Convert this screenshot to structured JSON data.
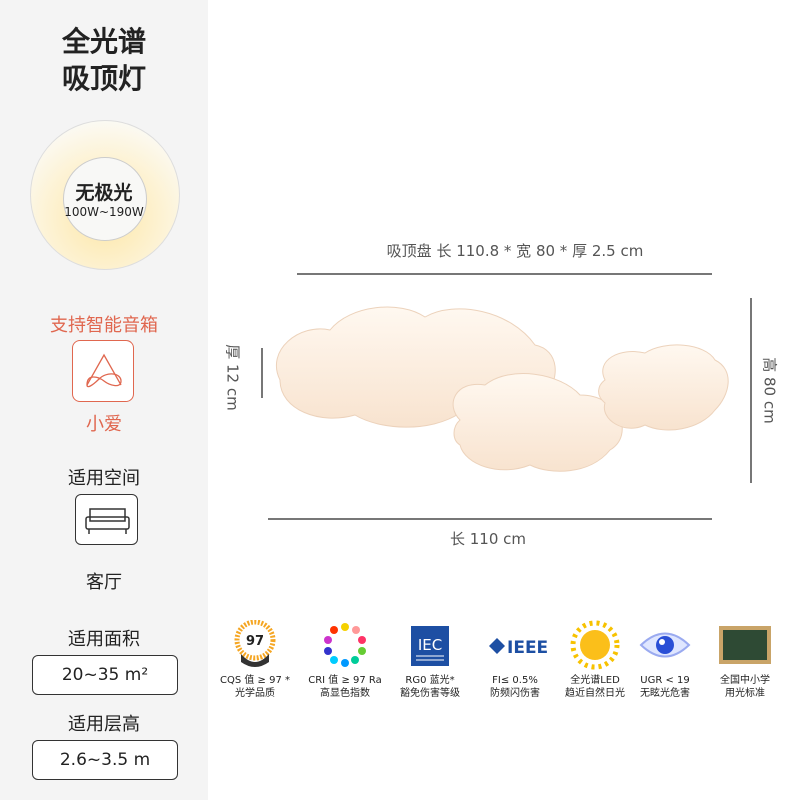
{
  "left": {
    "title_line1": "全光谱",
    "title_line2": "吸顶灯",
    "light_label": "无极光",
    "power_range": "100W~190W",
    "smart_heading": "支持智能音箱",
    "smart_name": "小爱",
    "space_heading": "适用空间",
    "space_value": "客厅",
    "area_heading": "适用面积",
    "area_value": "20~35 m²",
    "height_heading": "适用层高",
    "height_value": "2.6~3.5 m",
    "accent_color": "#e0674f"
  },
  "product": {
    "panel_dims": "吸顶盘 长 110.8 * 宽 80 * 厚 2.5 cm",
    "height_dim": "高 80 cm",
    "thickness_dim": "厚 12 cm",
    "length_dim": "长 110 cm"
  },
  "features": [
    {
      "icon": "cqs-97-badge-icon",
      "badge": "97",
      "line1": "CQS 值 ≥ 97 *",
      "line2": "光学品质"
    },
    {
      "icon": "color-dots-ring-icon",
      "line1": "CRI 值 ≥ 97 Ra",
      "line2": "高显色指数"
    },
    {
      "icon": "iec-logo-icon",
      "badge": "IEC",
      "line1": "RG0  蓝光*",
      "line2": "豁免伤害等级"
    },
    {
      "icon": "ieee-logo-icon",
      "badge": "IEEE",
      "line1": "FI≤ 0.5%",
      "line2": "防频闪伤害"
    },
    {
      "icon": "sun-icon",
      "line1": "全光谱LED",
      "line2": "趋近自然日光"
    },
    {
      "icon": "eye-icon",
      "line1": "UGR < 19",
      "line2": "无眩光危害"
    },
    {
      "icon": "blackboard-icon",
      "line1": "全国中小学",
      "line2": "用光标准"
    }
  ]
}
